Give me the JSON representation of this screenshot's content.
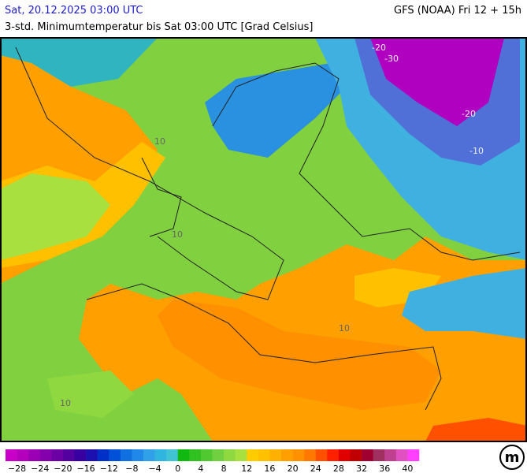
{
  "header": {
    "date": "Sat, 20.12.2025 03:00 UTC",
    "model": "GFS (NOAA) Fri 12 + 15h",
    "subtitle": "3-std. Minimumtemperatur bis Sat 03:00 UTC [Grad Celsius]"
  },
  "map_labels": [
    "-20",
    "-30",
    "-20",
    "-10",
    "10",
    "10",
    "10",
    "10"
  ],
  "colorbar": {
    "colors": [
      "#c800c8",
      "#b400bc",
      "#9c00b4",
      "#8400ac",
      "#6c00a4",
      "#5400a0",
      "#3800a0",
      "#1c10b0",
      "#0030c8",
      "#0050d8",
      "#1070e0",
      "#2088e8",
      "#30a0e8",
      "#30b4e0",
      "#40c4d4",
      "#10b810",
      "#30c020",
      "#50c830",
      "#70d040",
      "#90d840",
      "#a8e040",
      "#ffcc00",
      "#ffc000",
      "#ffb000",
      "#ffa000",
      "#ff9000",
      "#ff7800",
      "#ff5000",
      "#ff2000",
      "#e00000",
      "#c00000",
      "#a00030",
      "#a03060",
      "#c04090",
      "#e050c0",
      "#ff40ff"
    ],
    "labels": [
      "−28",
      "−24",
      "−20",
      "−16",
      "−12",
      "−8",
      "−4",
      "0",
      "4",
      "8",
      "12",
      "16",
      "20",
      "24",
      "28",
      "32",
      "36",
      "40"
    ]
  },
  "logo": "m"
}
